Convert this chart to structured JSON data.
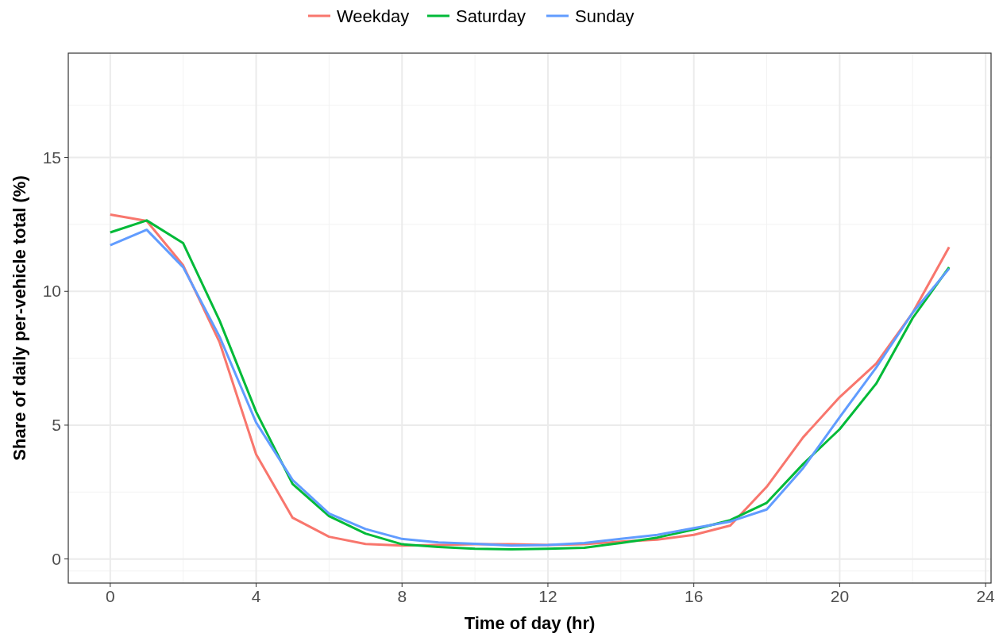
{
  "chart_data": {
    "type": "line",
    "xlabel": "Time of day (hr)",
    "ylabel": "Share of daily per-vehicle total (%)",
    "x": [
      0,
      1,
      2,
      3,
      4,
      5,
      6,
      7,
      8,
      9,
      10,
      11,
      12,
      13,
      14,
      15,
      16,
      17,
      18,
      19,
      20,
      21,
      22,
      23
    ],
    "series": [
      {
        "name": "Weekday",
        "color": "#f8766d",
        "values": [
          12.87,
          12.63,
          10.97,
          8.09,
          3.91,
          1.54,
          0.83,
          0.56,
          0.5,
          0.52,
          0.55,
          0.55,
          0.52,
          0.55,
          0.65,
          0.72,
          0.9,
          1.25,
          2.7,
          4.55,
          6.05,
          7.3,
          9.2,
          11.65
        ]
      },
      {
        "name": "Saturday",
        "color": "#00ba38",
        "values": [
          12.2,
          12.65,
          11.8,
          8.9,
          5.5,
          2.8,
          1.6,
          0.95,
          0.55,
          0.45,
          0.38,
          0.36,
          0.38,
          0.42,
          0.6,
          0.8,
          1.1,
          1.45,
          2.1,
          3.55,
          4.85,
          6.55,
          9.0,
          10.9
        ]
      },
      {
        "name": "Sunday",
        "color": "#619cff",
        "values": [
          11.72,
          12.3,
          10.9,
          8.3,
          5.1,
          2.95,
          1.7,
          1.12,
          0.75,
          0.62,
          0.57,
          0.5,
          0.52,
          0.6,
          0.75,
          0.9,
          1.15,
          1.4,
          1.85,
          3.4,
          5.3,
          7.15,
          9.2,
          10.85
        ]
      }
    ],
    "xlim": [
      -1.15,
      24.15
    ],
    "ylim": [
      -0.9,
      18.9
    ],
    "xticks": [
      0,
      4,
      8,
      12,
      16,
      20,
      24
    ],
    "yticks": [
      0,
      5,
      10,
      15
    ],
    "grid": true,
    "legend": "top",
    "marker": "none",
    "line_style": "solid"
  }
}
